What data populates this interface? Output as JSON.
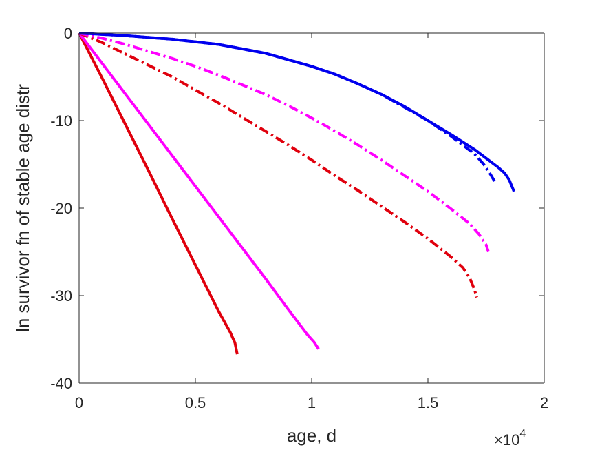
{
  "chart_data": {
    "type": "line",
    "xlabel": "age, d",
    "ylabel": "ln survivor fn of stable age distr",
    "x_multiplier_base": "×10",
    "x_multiplier_exp": "4",
    "xlim": [
      0,
      20000
    ],
    "ylim": [
      -40,
      0
    ],
    "xticks": [
      0,
      5000,
      10000,
      15000,
      20000
    ],
    "xtick_labels": [
      "0",
      "0.5",
      "1",
      "1.5",
      "2"
    ],
    "yticks": [
      0,
      -10,
      -20,
      -30,
      -40
    ],
    "ytick_labels": [
      "0",
      "-10",
      "-20",
      "-30",
      "-40"
    ],
    "grid": false,
    "series": [
      {
        "color": "#e0000d",
        "style": "solid",
        "x": [
          0,
          1000,
          2000,
          3000,
          4000,
          5000,
          6000,
          6500,
          6700,
          6800
        ],
        "y": [
          0,
          -5.2,
          -10.5,
          -15.8,
          -21.2,
          -26.5,
          -31.8,
          -34.2,
          -35.4,
          -36.7
        ]
      },
      {
        "color": "#ff00ff",
        "style": "solid",
        "x": [
          0,
          1000,
          2000,
          3000,
          4000,
          5000,
          6000,
          7000,
          8000,
          9000,
          9800,
          10100,
          10300
        ],
        "y": [
          0,
          -3.5,
          -7.0,
          -10.5,
          -14.0,
          -17.5,
          -21.0,
          -24.5,
          -28.0,
          -31.6,
          -34.4,
          -35.3,
          -36.1
        ]
      },
      {
        "color": "#e0000d",
        "style": "dashdot",
        "x": [
          0,
          1000,
          2000,
          3000,
          4000,
          5000,
          6000,
          7000,
          8000,
          9000,
          10000,
          11000,
          12000,
          13000,
          14000,
          15000,
          16000,
          16500,
          16800,
          17000,
          17100
        ],
        "y": [
          0,
          -1.1,
          -2.4,
          -3.7,
          -5.0,
          -6.5,
          -8.0,
          -9.6,
          -11.2,
          -12.8,
          -14.5,
          -16.3,
          -18.0,
          -19.8,
          -21.6,
          -23.5,
          -25.6,
          -26.8,
          -28.0,
          -29.3,
          -30.2
        ]
      },
      {
        "color": "#ff00ff",
        "style": "dashdot",
        "x": [
          0,
          1000,
          2000,
          3000,
          4000,
          5000,
          6000,
          7000,
          8000,
          9000,
          10000,
          11000,
          12000,
          13000,
          14000,
          15000,
          16000,
          16800,
          17200,
          17500,
          17600
        ],
        "y": [
          0,
          -0.6,
          -1.3,
          -2.1,
          -2.9,
          -3.8,
          -4.8,
          -5.9,
          -7.0,
          -8.3,
          -9.7,
          -11.2,
          -12.8,
          -14.5,
          -16.3,
          -18.1,
          -20.1,
          -21.8,
          -23.0,
          -24.2,
          -25.0
        ]
      },
      {
        "color": "#0000ee",
        "style": "dashdot",
        "x": [
          0,
          2000,
          4000,
          6000,
          8000,
          10000,
          11000,
          12000,
          13000,
          14000,
          15000,
          16000,
          16500,
          17000,
          17400,
          17700,
          17900
        ],
        "y": [
          0,
          -0.3,
          -0.7,
          -1.3,
          -2.3,
          -3.8,
          -4.7,
          -5.8,
          -7.0,
          -8.5,
          -10.0,
          -11.8,
          -12.8,
          -13.8,
          -15.0,
          -16.2,
          -17.1
        ]
      },
      {
        "color": "#0000ee",
        "style": "solid",
        "x": [
          0,
          2000,
          4000,
          6000,
          8000,
          10000,
          11000,
          12000,
          13000,
          14000,
          15000,
          16000,
          17000,
          17500,
          18000,
          18300,
          18500,
          18700
        ],
        "y": [
          0,
          -0.3,
          -0.7,
          -1.3,
          -2.3,
          -3.8,
          -4.7,
          -5.8,
          -7.0,
          -8.4,
          -10.0,
          -11.6,
          -13.3,
          -14.3,
          -15.3,
          -16.0,
          -16.8,
          -18.1
        ]
      }
    ]
  }
}
